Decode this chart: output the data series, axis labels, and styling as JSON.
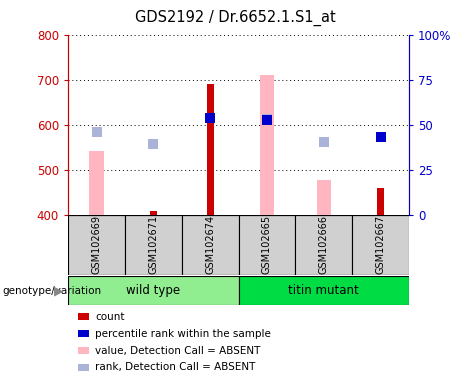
{
  "title": "GDS2192 / Dr.6652.1.S1_at",
  "samples": [
    "GSM102669",
    "GSM102671",
    "GSM102674",
    "GSM102665",
    "GSM102666",
    "GSM102667"
  ],
  "ylim_left": [
    400,
    800
  ],
  "ylim_right": [
    0,
    100
  ],
  "yticks_left": [
    400,
    500,
    600,
    700,
    800
  ],
  "yticks_right": [
    0,
    25,
    50,
    75,
    100
  ],
  "ytick_labels_right": [
    "0",
    "25",
    "50",
    "75",
    "100%"
  ],
  "count_values": [
    null,
    410,
    690,
    null,
    null,
    460
  ],
  "count_color": "#cc0000",
  "percentile_values": [
    null,
    null,
    615,
    610,
    null,
    572
  ],
  "percentile_color": "#0000cc",
  "absent_value_values": [
    542,
    null,
    null,
    710,
    477,
    null
  ],
  "absent_value_color": "#ffb6c1",
  "absent_rank_values": [
    583,
    558,
    null,
    613,
    562,
    null
  ],
  "absent_rank_color": "#aab4d8",
  "background_color": "#ffffff",
  "legend_items": [
    {
      "label": "count",
      "color": "#cc0000"
    },
    {
      "label": "percentile rank within the sample",
      "color": "#0000cc"
    },
    {
      "label": "value, Detection Call = ABSENT",
      "color": "#ffb6c1"
    },
    {
      "label": "rank, Detection Call = ABSENT",
      "color": "#aab4d8"
    }
  ],
  "wt_color": "#90ee90",
  "mut_color": "#00dd44",
  "sample_bg_color": "#d0d0d0"
}
